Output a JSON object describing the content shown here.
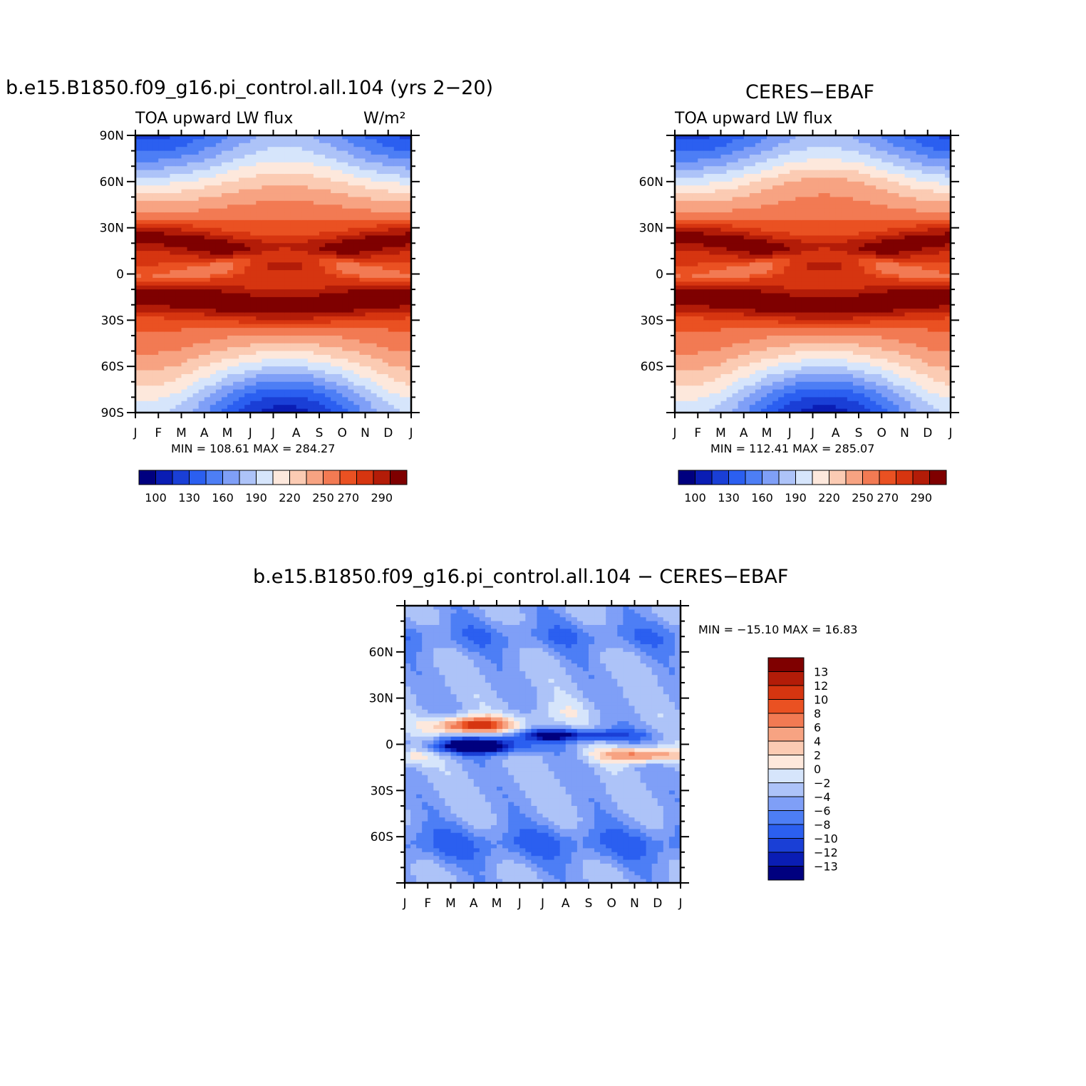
{
  "panel1": {
    "title": "b.e15.B1850.f09_g16.pi_control.all.104 (yrs 2−20)",
    "left_label": "TOA upward LW flux",
    "units": "W/m²",
    "minmax": "MIN =  108.61  MAX =  284.27"
  },
  "panel2": {
    "title": "CERES−EBAF",
    "left_label": "TOA upward LW flux",
    "minmax": "MIN =  112.41  MAX =  285.07"
  },
  "panel3": {
    "title": "b.e15.B1850.f09_g16.pi_control.all.104 − CERES−EBAF",
    "minmax": "MIN = −15.10  MAX =   16.83"
  },
  "chart_data": [
    {
      "type": "heatmap",
      "title": "b.e15.B1850.f09_g16.pi_control.all.104 (yrs 2-20)",
      "variable": "TOA upward LW flux",
      "units": "W/m^2",
      "x": [
        "J",
        "F",
        "M",
        "A",
        "M",
        "J",
        "J",
        "A",
        "S",
        "O",
        "N",
        "D",
        "J"
      ],
      "y_ticks": [
        "90N",
        "60N",
        "30N",
        "0",
        "30S",
        "60S",
        "90S"
      ],
      "y_range": [
        -90,
        90
      ],
      "min": 108.61,
      "max": 284.27,
      "contour_levels": [
        100,
        110,
        120,
        130,
        140,
        150,
        160,
        170,
        180,
        190,
        200,
        210,
        220,
        230,
        240,
        250,
        260,
        270,
        280,
        290
      ],
      "colorbar_labels": [
        "100",
        "130",
        "160",
        "190",
        "220",
        "250",
        "270",
        "290"
      ]
    },
    {
      "type": "heatmap",
      "title": "CERES-EBAF",
      "variable": "TOA upward LW flux",
      "x": [
        "J",
        "F",
        "M",
        "A",
        "M",
        "J",
        "J",
        "A",
        "S",
        "O",
        "N",
        "D",
        "J"
      ],
      "y_ticks": [
        "60N",
        "30N",
        "0",
        "30S",
        "60S"
      ],
      "y_range": [
        -90,
        90
      ],
      "min": 112.41,
      "max": 285.07,
      "colorbar_labels": [
        "100",
        "130",
        "160",
        "190",
        "220",
        "250",
        "270",
        "290"
      ]
    },
    {
      "type": "heatmap",
      "title": "b.e15.B1850.f09_g16.pi_control.all.104 - CERES-EBAF",
      "x": [
        "J",
        "F",
        "M",
        "A",
        "M",
        "J",
        "J",
        "A",
        "S",
        "O",
        "N",
        "D",
        "J"
      ],
      "y_ticks": [
        "60N",
        "30N",
        "0",
        "30S",
        "60S"
      ],
      "y_range": [
        -90,
        90
      ],
      "min": -15.1,
      "max": 16.83,
      "colorbar_labels": [
        "13",
        "12",
        "10",
        "8",
        "6",
        "4",
        "2",
        "0",
        "−2",
        "−4",
        "−6",
        "−8",
        "−10",
        "−12",
        "−13"
      ]
    }
  ],
  "colors": {
    "seq": [
      "#00007f",
      "#0a1db4",
      "#1a3fd6",
      "#2b5ff0",
      "#4d7ef5",
      "#7f9ff7",
      "#adc3f8",
      "#d6e5fb",
      "#fde8dc",
      "#fbcbb3",
      "#f7a382",
      "#f27a53",
      "#ea5122",
      "#d63510",
      "#b31c08",
      "#7f0000"
    ],
    "div": [
      "#7f0000",
      "#b31c08",
      "#d63510",
      "#ea5122",
      "#f27a53",
      "#f7a382",
      "#fbcbb3",
      "#fde8dc",
      "#d6e5fb",
      "#adc3f8",
      "#7f9ff7",
      "#4d7ef5",
      "#2b5ff0",
      "#1a3fd6",
      "#0a1db4",
      "#00007f"
    ]
  }
}
